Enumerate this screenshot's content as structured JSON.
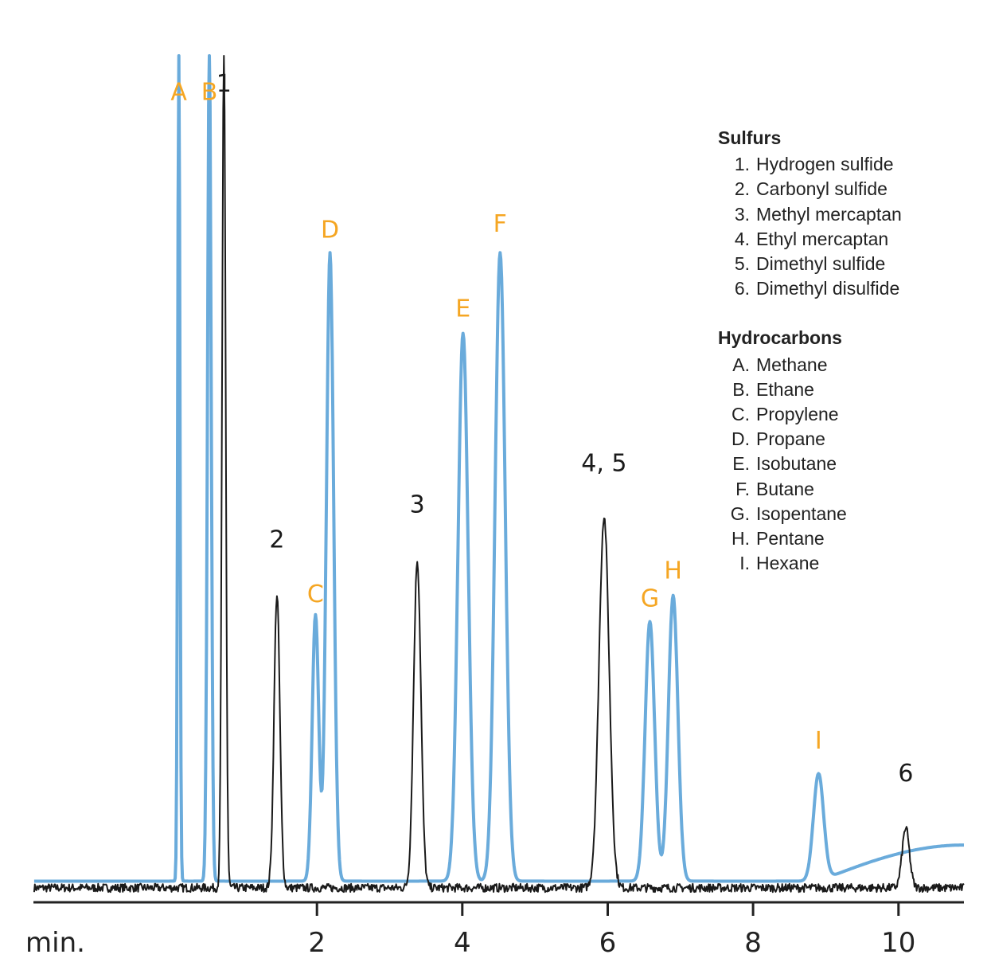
{
  "colors": {
    "hydrocarbon": "#6aabdb",
    "sulfur": "#1a1a1a",
    "hydrocarbon_label": "#f5a623",
    "axis": "#222222"
  },
  "legend": {
    "groups": [
      {
        "title": "Sulfurs",
        "items": [
          {
            "key": "1.",
            "name": "Hydrogen sulfide"
          },
          {
            "key": "2.",
            "name": "Carbonyl sulfide"
          },
          {
            "key": "3.",
            "name": "Methyl mercaptan"
          },
          {
            "key": "4.",
            "name": "Ethyl mercaptan"
          },
          {
            "key": "5.",
            "name": "Dimethyl sulfide"
          },
          {
            "key": "6.",
            "name": "Dimethyl disulfide"
          }
        ]
      },
      {
        "title": "Hydrocarbons",
        "items": [
          {
            "key": "A.",
            "name": "Methane"
          },
          {
            "key": "B.",
            "name": "Ethane"
          },
          {
            "key": "C.",
            "name": "Propylene"
          },
          {
            "key": "D.",
            "name": "Propane"
          },
          {
            "key": "E.",
            "name": "Isobutane"
          },
          {
            "key": "F.",
            "name": "Butane"
          },
          {
            "key": "G.",
            "name": "Isopentane"
          },
          {
            "key": "H.",
            "name": "Pentane"
          },
          {
            "key": "I.",
            "name": "Hexane"
          }
        ]
      }
    ]
  },
  "chart_data": {
    "type": "line",
    "xlabel": "min.",
    "xlim": [
      -1.9,
      10.9
    ],
    "ylim": [
      0,
      100
    ],
    "xticks": [
      2,
      4,
      6,
      8,
      10
    ],
    "legend_position": "top-right",
    "series": [
      {
        "kind": "hydrocarbon",
        "baseline": 1.0,
        "drift": {
          "start": 8.9,
          "end": 10.9,
          "height": 4.3
        },
        "peaks": [
          {
            "label": "A",
            "rt": 0.1,
            "height": 100,
            "width": 0.015,
            "label_height": 94
          },
          {
            "label": "B",
            "rt": 0.52,
            "height": 100,
            "width": 0.025,
            "label_height": 94
          },
          {
            "label": "C",
            "rt": 1.98,
            "height": 31.7,
            "width": 0.045,
            "label_height": 34.2
          },
          {
            "label": "D",
            "rt": 2.18,
            "height": 74.8,
            "width": 0.05,
            "label_height": 77.6
          },
          {
            "label": "E",
            "rt": 4.01,
            "height": 65.2,
            "width": 0.07,
            "label_height": 68.2
          },
          {
            "label": "F",
            "rt": 4.52,
            "height": 74.8,
            "width": 0.07,
            "label_height": 78.3
          },
          {
            "label": "G",
            "rt": 6.58,
            "height": 30.9,
            "width": 0.065,
            "label_height": 33.7
          },
          {
            "label": "H",
            "rt": 6.9,
            "height": 34.0,
            "width": 0.065,
            "label_height": 37.0
          },
          {
            "label": "I",
            "rt": 8.9,
            "height": 12.8,
            "width": 0.07,
            "label_height": 16.8
          }
        ]
      },
      {
        "kind": "sulfur",
        "baseline": 0.2,
        "peaks": [
          {
            "label": "1",
            "rt": 0.72,
            "height": 100,
            "width": 0.025,
            "label_height": 95
          },
          {
            "label": "2",
            "rt": 1.45,
            "height": 34.9,
            "width": 0.04,
            "label_height": 40.7
          },
          {
            "label": "3",
            "rt": 3.38,
            "height": 39.0,
            "width": 0.05,
            "label_height": 44.9
          },
          {
            "label": "4, 5",
            "rt": 5.95,
            "height": 44.2,
            "width": 0.07,
            "label_height": 49.8
          },
          {
            "label": "6",
            "rt": 10.1,
            "height": 7.1,
            "width": 0.05,
            "label_height": 12.9
          }
        ]
      }
    ]
  }
}
